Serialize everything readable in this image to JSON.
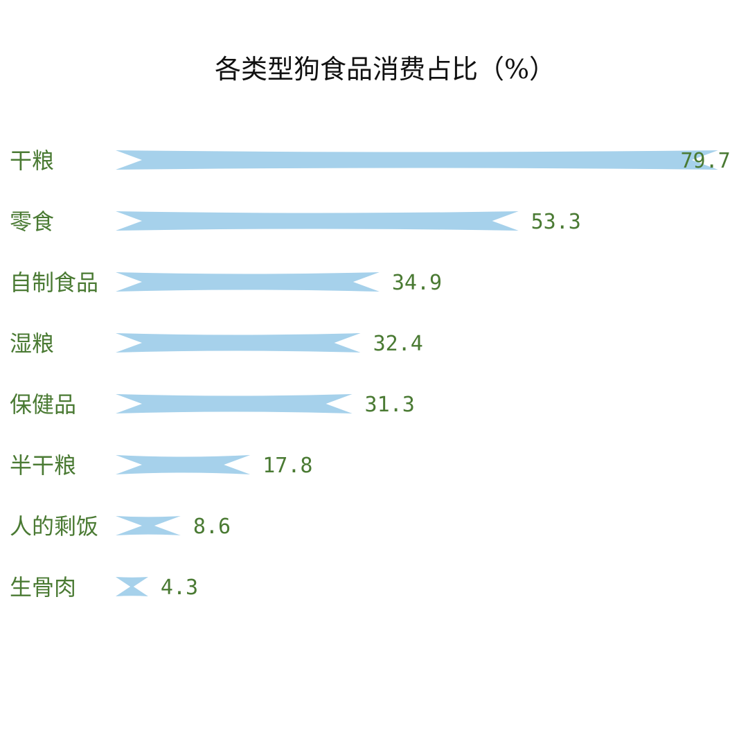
{
  "chart_data": {
    "type": "bar",
    "orientation": "horizontal",
    "title": "各类型狗食品消费占比（%）",
    "categories": [
      "干粮",
      "零食",
      "自制食品",
      "湿粮",
      "保健品",
      "半干粮",
      "人的剩饭",
      "生骨肉"
    ],
    "values": [
      79.7,
      53.3,
      34.9,
      32.4,
      31.3,
      17.8,
      8.6,
      4.3
    ],
    "value_labels": [
      "79.7",
      "53.3",
      "34.9",
      "32.4",
      "31.3",
      "17.8",
      "8.6",
      "4.3"
    ],
    "xlim": [
      0,
      80
    ],
    "grid": false,
    "legend": "none",
    "bar_style": "ribbon",
    "bar_color": "#a6d1eb",
    "label_color": "#4a7a33",
    "title_color": "#111111"
  }
}
